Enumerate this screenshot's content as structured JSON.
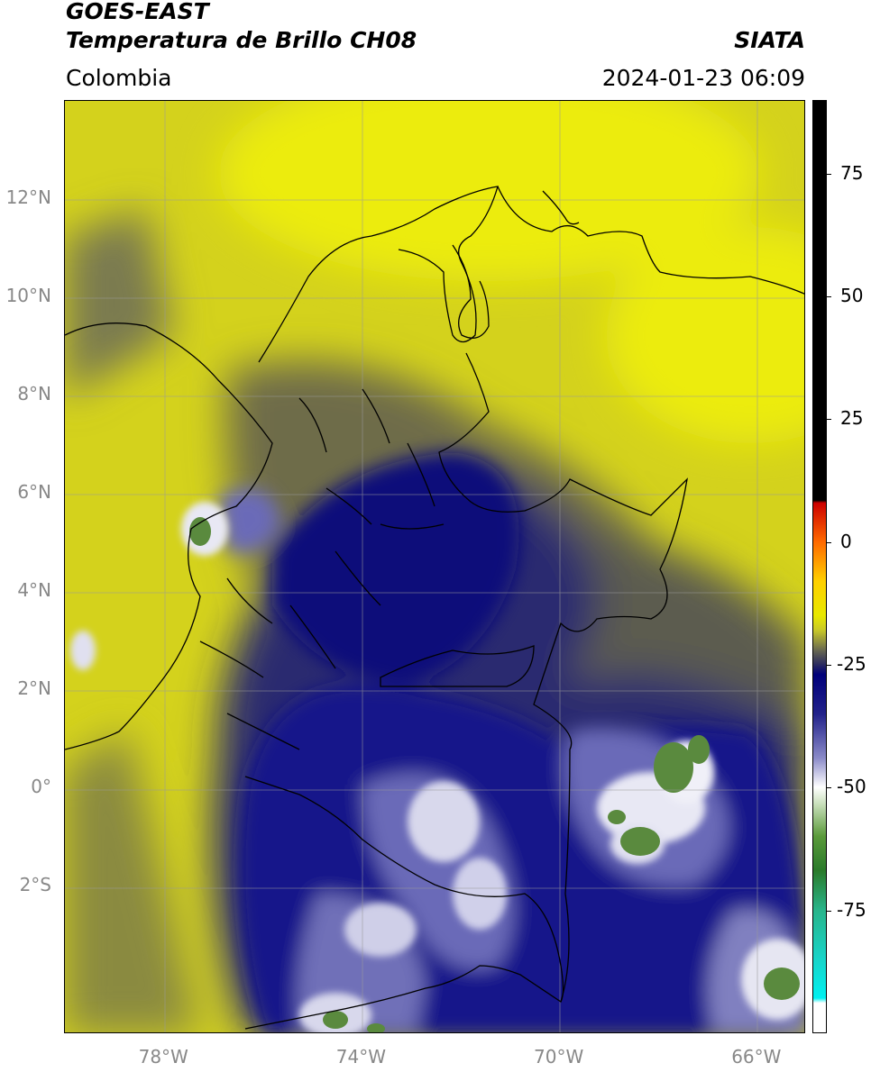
{
  "header": {
    "satellite": "GOES-EAST",
    "product": "Temperatura de Brillo CH08",
    "region": "Colombia",
    "agency": "SIATA",
    "datetime": "2024-01-23 06:09"
  },
  "map": {
    "extent": {
      "lon_min": -80,
      "lon_max": -65,
      "lat_min": -5,
      "lat_max": 14
    },
    "lat_ticks": [
      {
        "value": 12,
        "label": "12°N"
      },
      {
        "value": 10,
        "label": "10°N"
      },
      {
        "value": 8,
        "label": "8°N"
      },
      {
        "value": 6,
        "label": "6°N"
      },
      {
        "value": 4,
        "label": "4°N"
      },
      {
        "value": 2,
        "label": "2°N"
      },
      {
        "value": 0,
        "label": "0°"
      },
      {
        "value": -2,
        "label": "2°S"
      }
    ],
    "lon_ticks": [
      {
        "value": -78,
        "label": "78°W"
      },
      {
        "value": -74,
        "label": "74°W"
      },
      {
        "value": -70,
        "label": "70°W"
      },
      {
        "value": -66,
        "label": "66°W"
      }
    ],
    "gridlines": true,
    "colors": {
      "warm": "#d8d81c",
      "mid": "#5a5a4a",
      "cold": "#12127a",
      "colder": "#5a5ab0",
      "coldest": "#ffffff",
      "very_cold": "#4a8a3a"
    }
  },
  "colorbar": {
    "range": [
      -100,
      90
    ],
    "ticks": [
      {
        "value": 75,
        "label": "75"
      },
      {
        "value": 50,
        "label": "50"
      },
      {
        "value": 25,
        "label": "25"
      },
      {
        "value": 0,
        "label": "0"
      },
      {
        "value": -25,
        "label": "-25"
      },
      {
        "value": -50,
        "label": "-50"
      },
      {
        "value": -75,
        "label": "-75"
      }
    ]
  }
}
